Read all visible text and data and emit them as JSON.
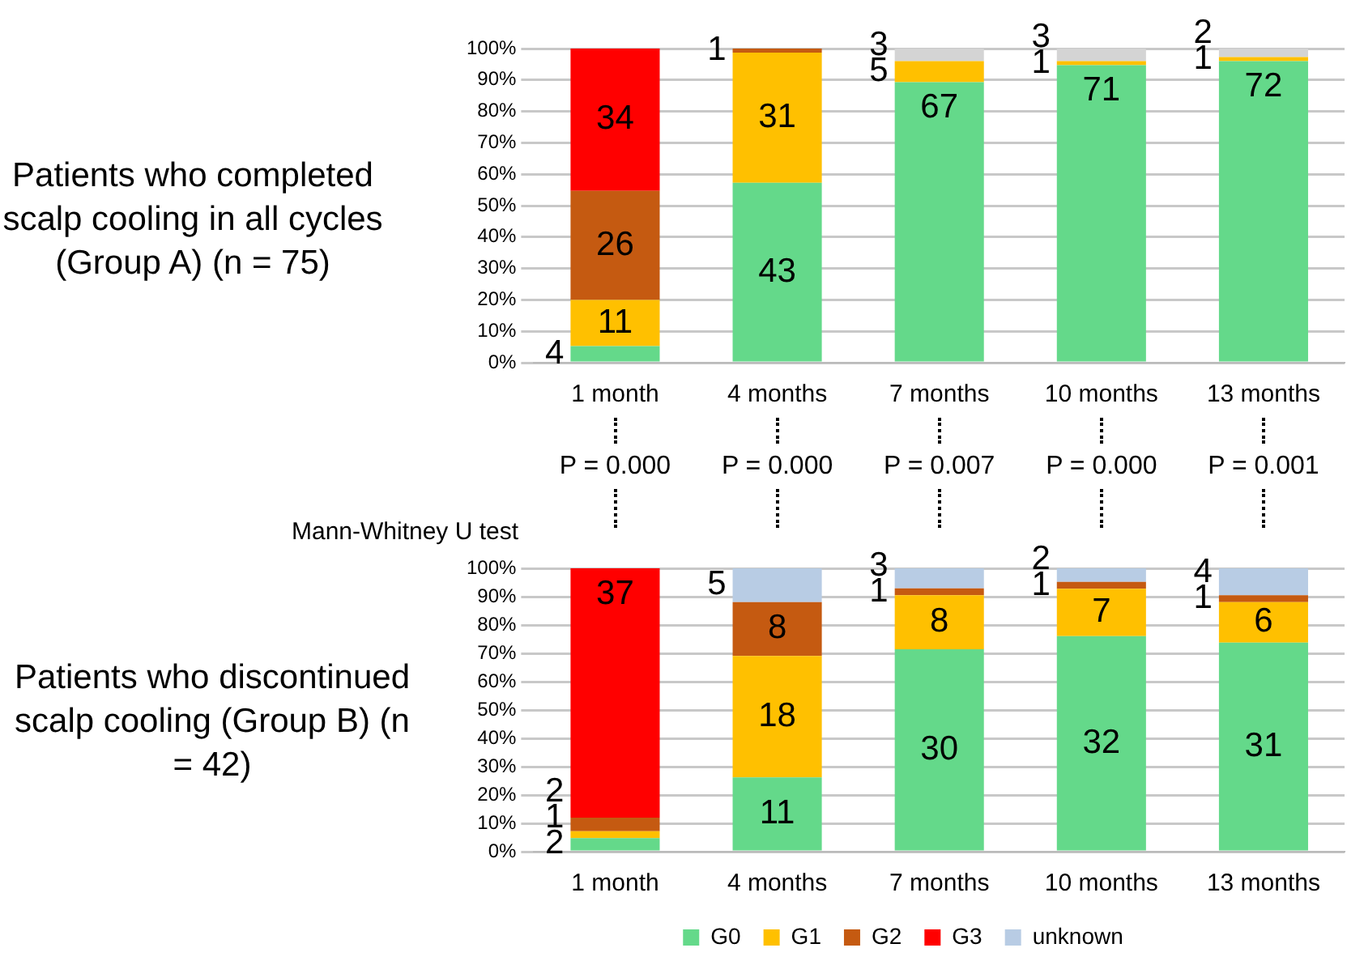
{
  "chart_data": [
    {
      "type": "bar",
      "title": "Patients who completed scalp cooling in all cycles (Group A) (n = 75)",
      "stacked": true,
      "grid": "y",
      "legend": false,
      "categories": [
        "1 month",
        "4 months",
        "7 months",
        "10 months",
        "13 months"
      ],
      "ylim": [
        0,
        100
      ],
      "yticks": [
        {
          "value": 0,
          "label": "0%"
        },
        {
          "value": 10,
          "label": "10%"
        },
        {
          "value": 20,
          "label": "20%"
        },
        {
          "value": 30,
          "label": "30%"
        },
        {
          "value": 40,
          "label": "40%"
        },
        {
          "value": 50,
          "label": "50%"
        },
        {
          "value": 60,
          "label": "60%"
        },
        {
          "value": 70,
          "label": "70%"
        },
        {
          "value": 80,
          "label": "80%"
        },
        {
          "value": 90,
          "label": "90%"
        },
        {
          "value": 100,
          "label": "100%"
        }
      ],
      "annotations": [
        {
          "text": "4",
          "x": "1 month",
          "y": 5.3
        },
        {
          "text": "11",
          "x": "1 month",
          "y": 20
        },
        {
          "text": "26",
          "x": "1 month",
          "y": 54.7
        },
        {
          "text": "34",
          "x": "1 month",
          "y": 100
        },
        {
          "text": "43",
          "x": "4 months",
          "y": 57.3
        },
        {
          "text": "31",
          "x": "4 months",
          "y": 98.7
        },
        {
          "text": "1",
          "x": "4 months",
          "y": 100
        },
        {
          "text": "67",
          "x": "7 months",
          "y": 89.3
        },
        {
          "text": "5",
          "x": "7 months",
          "y": 96
        },
        {
          "text": "3",
          "x": "7 months",
          "y": 100
        },
        {
          "text": "71",
          "x": "10 months",
          "y": 94.7
        },
        {
          "text": "1",
          "x": "10 months",
          "y": 96
        },
        {
          "text": "3",
          "x": "10 months",
          "y": 100
        },
        {
          "text": "72",
          "x": "13 months",
          "y": 96
        },
        {
          "text": "1",
          "x": "13 months",
          "y": 97.3
        },
        {
          "text": "2",
          "x": "13 months",
          "y": 100
        }
      ],
      "series": [
        {
          "color": "#64d98a",
          "values": [
            5.3,
            57.3,
            89.3,
            94.7,
            96
          ]
        },
        {
          "color": "#ffc000",
          "values": [
            14.7,
            41.4,
            6.7,
            1.3,
            1.3
          ]
        },
        {
          "color": "#c55a11",
          "values": [
            34.7,
            1.3,
            0,
            0,
            0
          ]
        },
        {
          "color": "#ff0000",
          "values": [
            45.3,
            0,
            0,
            0,
            0
          ]
        },
        {
          "color": "#d4d4d4",
          "values": [
            0,
            0,
            4,
            4,
            2.7
          ]
        }
      ]
    },
    {
      "type": "bar",
      "title": "Patients who discontinued scalp cooling (Group B) (n = 42)",
      "stacked": true,
      "grid": "y",
      "legend": "bottom",
      "categories": [
        "1 month",
        "4 months",
        "7 months",
        "10 months",
        "13 months"
      ],
      "ylim": [
        0,
        100
      ],
      "yticks": [
        {
          "value": 0,
          "label": "0%"
        },
        {
          "value": 10,
          "label": "10%"
        },
        {
          "value": 20,
          "label": "20%"
        },
        {
          "value": 30,
          "label": "30%"
        },
        {
          "value": 40,
          "label": "40%"
        },
        {
          "value": 50,
          "label": "50%"
        },
        {
          "value": 60,
          "label": "60%"
        },
        {
          "value": 70,
          "label": "70%"
        },
        {
          "value": 80,
          "label": "80%"
        },
        {
          "value": 90,
          "label": "90%"
        },
        {
          "value": 100,
          "label": "100%"
        }
      ],
      "annotations": [
        "Mann-Whitney U test",
        {
          "text": "P = 0.000",
          "x": "1 month"
        },
        {
          "text": "P = 0.000",
          "x": "4 months"
        },
        {
          "text": "P = 0.007",
          "x": "7 months"
        },
        {
          "text": "P = 0.000",
          "x": "10 months"
        },
        {
          "text": "P = 0.001",
          "x": "13 months"
        },
        {
          "text": "2",
          "x": "1 month",
          "y": 4.8
        },
        {
          "text": "1",
          "x": "1 month",
          "y": 7.2
        },
        {
          "text": "2",
          "x": "1 month",
          "y": 12
        },
        {
          "text": "37",
          "x": "1 month",
          "y": 100
        },
        {
          "text": "11",
          "x": "4 months",
          "y": 26.2
        },
        {
          "text": "18",
          "x": "4 months",
          "y": 69.1
        },
        {
          "text": "8",
          "x": "4 months",
          "y": 88.1
        },
        {
          "text": "5",
          "x": "4 months",
          "y": 100
        },
        {
          "text": "30",
          "x": "7 months",
          "y": 71.4
        },
        {
          "text": "8",
          "x": "7 months",
          "y": 90.5
        },
        {
          "text": "1",
          "x": "7 months",
          "y": 92.9
        },
        {
          "text": "3",
          "x": "7 months",
          "y": 100
        },
        {
          "text": "32",
          "x": "10 months",
          "y": 76.1
        },
        {
          "text": "7",
          "x": "10 months",
          "y": 92.8
        },
        {
          "text": "1",
          "x": "10 months",
          "y": 95.2
        },
        {
          "text": "2",
          "x": "10 months",
          "y": 100
        },
        {
          "text": "31",
          "x": "13 months",
          "y": 73.8
        },
        {
          "text": "6",
          "x": "13 months",
          "y": 88.1
        },
        {
          "text": "1",
          "x": "13 months",
          "y": 90.5
        },
        {
          "text": "4",
          "x": "13 months",
          "y": 100
        }
      ],
      "series": [
        {
          "name": "G0",
          "color": "#64d98a",
          "values": [
            4.8,
            26.2,
            71.4,
            76.1,
            73.8
          ]
        },
        {
          "name": "G1",
          "color": "#ffc000",
          "values": [
            2.4,
            42.9,
            19.1,
            16.7,
            14.3
          ]
        },
        {
          "name": "G2",
          "color": "#c55a11",
          "values": [
            4.8,
            19,
            2.4,
            2.4,
            2.4
          ]
        },
        {
          "name": "G3",
          "color": "#ff0000",
          "values": [
            88,
            0,
            0,
            0,
            0
          ]
        },
        {
          "name": "unknown",
          "color": "#b8cce4",
          "values": [
            0,
            11.9,
            7.1,
            4.8,
            9.5
          ]
        }
      ]
    }
  ]
}
